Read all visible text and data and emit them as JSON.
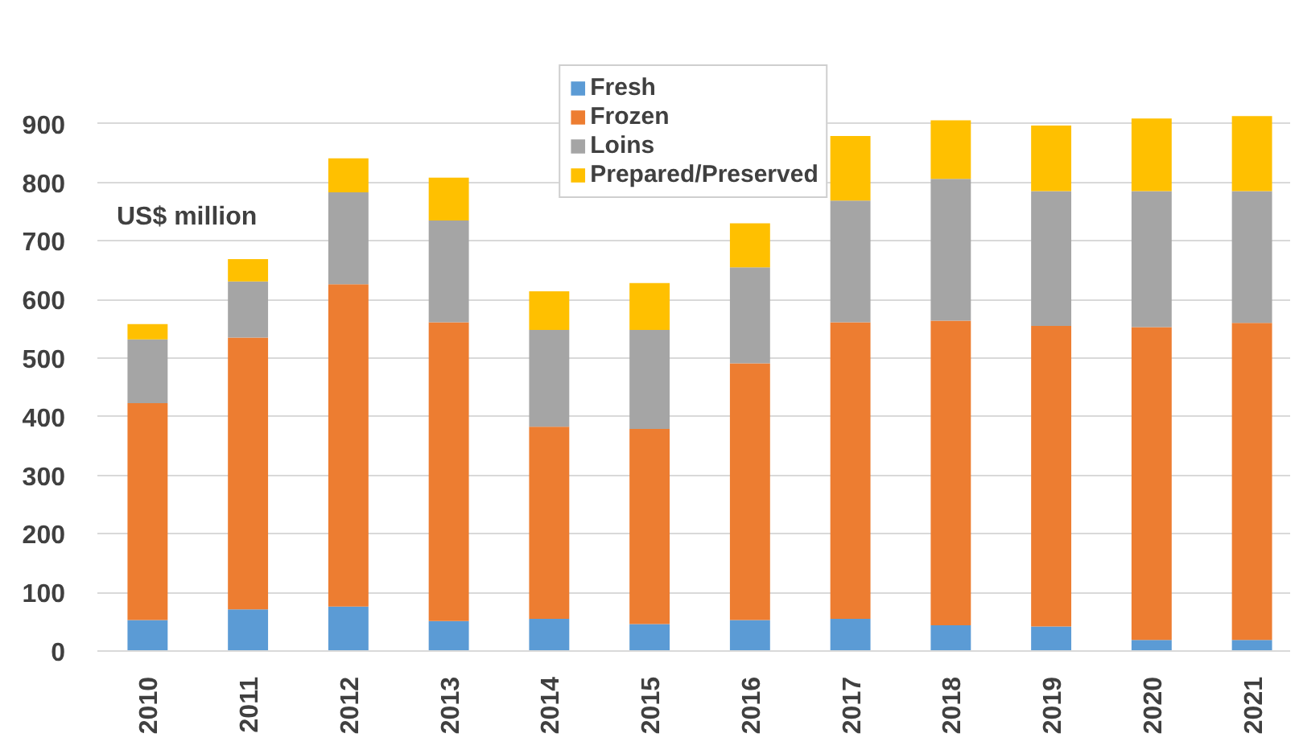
{
  "chart_data": {
    "type": "bar",
    "stacked": true,
    "ylabel": "US$ million",
    "categories": [
      "2010",
      "2011",
      "2012",
      "2013",
      "2014",
      "2015",
      "2016",
      "2017",
      "2018",
      "2019",
      "2020",
      "2021"
    ],
    "series": [
      {
        "name": "Fresh",
        "color": "#5b9bd5",
        "values": [
          53,
          71,
          76,
          51,
          55,
          46,
          53,
          55,
          44,
          42,
          19,
          19
        ]
      },
      {
        "name": "Frozen",
        "color": "#ed7d31",
        "values": [
          370,
          464,
          550,
          510,
          328,
          333,
          438,
          506,
          520,
          513,
          534,
          541
        ]
      },
      {
        "name": "Loins",
        "color": "#a5a5a5",
        "values": [
          109,
          96,
          157,
          174,
          165,
          169,
          164,
          208,
          242,
          230,
          232,
          225
        ]
      },
      {
        "name": "Prepared/Preserved",
        "color": "#ffc000",
        "values": [
          26,
          38,
          58,
          73,
          66,
          80,
          75,
          110,
          100,
          112,
          124,
          128
        ]
      }
    ],
    "ylim": [
      0,
      1000
    ],
    "yticks": [
      0,
      100,
      200,
      300,
      400,
      500,
      600,
      700,
      800,
      900
    ],
    "grid": "y",
    "legend": "top"
  }
}
